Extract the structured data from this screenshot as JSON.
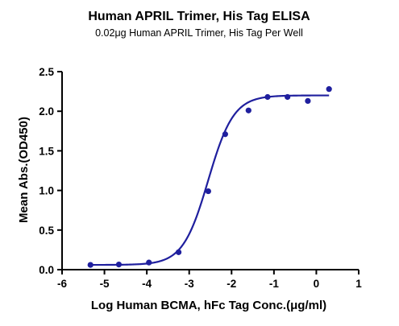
{
  "chart_data": {
    "type": "scatter",
    "title": "Human APRIL Trimer, His Tag ELISA",
    "subtitle": "0.02μg Human APRIL Trimer, His Tag Per Well",
    "xlabel": "Log Human BCMA, hFc Tag Conc.(μg/ml)",
    "ylabel": "Mean Abs.(OD450)",
    "xlim": [
      -6,
      1
    ],
    "ylim": [
      0.0,
      2.5
    ],
    "xticks": [
      -6,
      -5,
      -4,
      -3,
      -2,
      -1,
      0,
      1
    ],
    "xtick_labels": [
      "-6",
      "-5",
      "-4",
      "-3",
      "-2",
      "-1",
      "0",
      "1"
    ],
    "yticks": [
      0.0,
      0.5,
      1.0,
      1.5,
      2.0,
      2.5
    ],
    "ytick_labels": [
      "0.0",
      "0.5",
      "1.0",
      "1.5",
      "2.0",
      "2.5"
    ],
    "grid": false,
    "legend": false,
    "series": [
      {
        "points": [
          {
            "x": -5.33,
            "y": 0.06
          },
          {
            "x": -4.66,
            "y": 0.065
          },
          {
            "x": -3.95,
            "y": 0.09
          },
          {
            "x": -3.25,
            "y": 0.22
          },
          {
            "x": -2.55,
            "y": 0.99
          },
          {
            "x": -2.15,
            "y": 1.71
          },
          {
            "x": -1.6,
            "y": 2.01
          },
          {
            "x": -1.15,
            "y": 2.18
          },
          {
            "x": -0.68,
            "y": 2.18
          },
          {
            "x": -0.2,
            "y": 2.13
          },
          {
            "x": 0.3,
            "y": 2.28
          }
        ],
        "fit": {
          "model": "4PL",
          "bottom": 0.06,
          "top": 2.2,
          "logEC50": -2.55,
          "hill": 1.45
        }
      }
    ],
    "color": "#1f1f9e"
  }
}
